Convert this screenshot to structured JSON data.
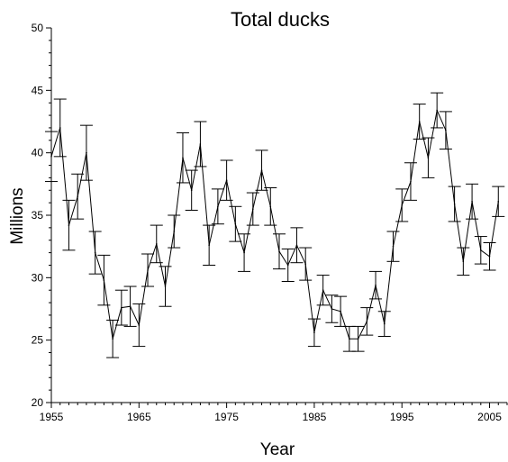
{
  "chart_data": {
    "type": "line",
    "title": "Total ducks",
    "xlabel": "Year",
    "ylabel": "Millions",
    "xlim": [
      1955,
      2007
    ],
    "ylim": [
      20,
      50
    ],
    "x_ticks": [
      "1955",
      "1965",
      "1975",
      "1985",
      "1995",
      "2005"
    ],
    "y_ticks": [
      "20",
      "25",
      "30",
      "35",
      "40",
      "45",
      "50"
    ],
    "grid": false,
    "legend": "none",
    "error_bars": true,
    "series": [
      {
        "x": [
          1955,
          1956,
          1957,
          1958,
          1959,
          1960,
          1961,
          1962,
          1963,
          1964,
          1965,
          1966,
          1967,
          1968,
          1969,
          1970,
          1971,
          1972,
          1973,
          1974,
          1975,
          1976,
          1977,
          1978,
          1979,
          1980,
          1981,
          1982,
          1983,
          1984,
          1985,
          1986,
          1987,
          1988,
          1989,
          1990,
          1991,
          1992,
          1993,
          1994,
          1995,
          1996,
          1997,
          1998,
          1999,
          2000,
          2001,
          2002,
          2003,
          2004,
          2005,
          2006
        ],
        "y": [
          39.7,
          42.0,
          34.2,
          36.5,
          40.0,
          32.0,
          29.8,
          25.1,
          27.6,
          27.7,
          26.2,
          30.6,
          32.7,
          29.3,
          33.7,
          39.6,
          37.0,
          40.7,
          32.6,
          35.7,
          37.8,
          34.3,
          32.0,
          35.5,
          38.6,
          35.7,
          32.1,
          31.0,
          32.6,
          31.1,
          25.6,
          29.0,
          27.5,
          27.3,
          25.1,
          25.1,
          26.5,
          29.4,
          26.3,
          32.5,
          35.8,
          37.7,
          42.5,
          39.6,
          43.4,
          41.8,
          35.9,
          31.3,
          36.1,
          32.2,
          31.7,
          36.1
        ],
        "err": [
          2.0,
          2.3,
          2.0,
          1.8,
          2.2,
          1.7,
          2.0,
          1.5,
          1.4,
          1.6,
          1.7,
          1.3,
          1.5,
          1.6,
          1.3,
          2.0,
          1.6,
          1.8,
          1.6,
          1.4,
          1.6,
          1.4,
          1.5,
          1.3,
          1.6,
          1.5,
          1.4,
          1.3,
          1.4,
          1.3,
          1.1,
          1.2,
          1.1,
          1.2,
          1.0,
          1.0,
          1.1,
          1.1,
          1.0,
          1.2,
          1.3,
          1.5,
          1.4,
          1.6,
          1.4,
          1.5,
          1.4,
          1.1,
          1.4,
          1.1,
          1.1,
          1.2
        ]
      }
    ]
  }
}
